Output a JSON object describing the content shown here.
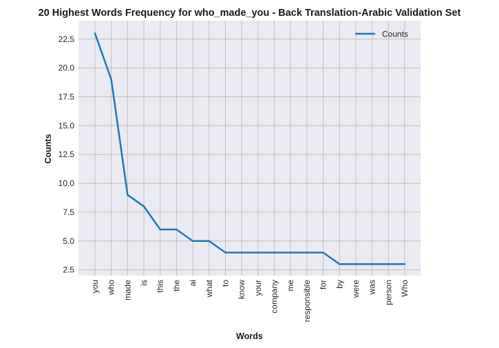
{
  "chart_data": {
    "type": "line",
    "title": "20 Highest Words Frequency for who_made_you - Back Translation-Arabic Validation Set",
    "xlabel": "Words",
    "ylabel": "Counts",
    "categories": [
      "you",
      "who",
      "made",
      "is",
      "this",
      "the",
      "ai",
      "what",
      "to",
      "know",
      "your",
      "company",
      "me",
      "responsible",
      "for",
      "by",
      "were",
      "was",
      "person",
      "Who"
    ],
    "series": [
      {
        "name": "Counts",
        "values": [
          23,
          19,
          9,
          8,
          6,
          6,
          5,
          5,
          4,
          4,
          4,
          4,
          4,
          4,
          4,
          3,
          3,
          3,
          3,
          3
        ],
        "color": "#1f77b4"
      }
    ],
    "yticks": [
      "2.5",
      "5.0",
      "7.5",
      "10.0",
      "12.5",
      "15.0",
      "17.5",
      "20.0",
      "22.5"
    ],
    "ylim": [
      2,
      24.1
    ],
    "grid": true,
    "legend_position": "top-right",
    "background_color": "#eaeaf2",
    "grid_color": "#c0c0c0"
  }
}
